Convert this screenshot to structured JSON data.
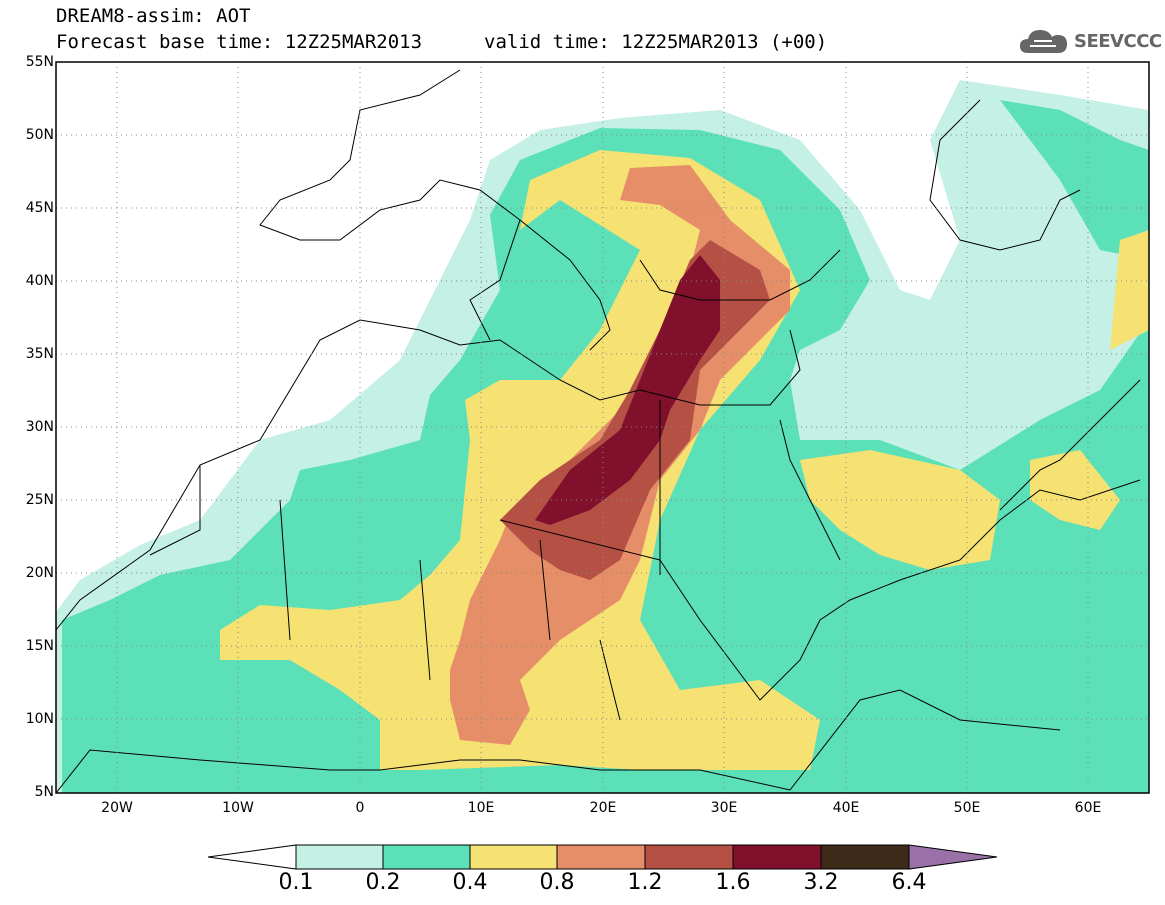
{
  "header": {
    "title": "DREAM8-assim: AOT",
    "base_time": "Forecast base time: 12Z25MAR2013",
    "valid_time": "valid time: 12Z25MAR2013 (+00)"
  },
  "logo": {
    "text": "SEEVCCC",
    "icon": "cloud-icon"
  },
  "map": {
    "lat_labels": [
      "55N",
      "50N",
      "45N",
      "40N",
      "35N",
      "30N",
      "25N",
      "20N",
      "15N",
      "10N",
      "5N"
    ],
    "lon_labels": [
      "20W",
      "10W",
      "0",
      "10E",
      "20E",
      "30E",
      "40E",
      "50E",
      "60E"
    ],
    "lon_range": [
      -25,
      65
    ],
    "lat_range": [
      5,
      55
    ],
    "grid": "dotted"
  },
  "legend": {
    "thresholds": [
      "0.1",
      "0.2",
      "0.4",
      "0.8",
      "1.2",
      "1.6",
      "3.2",
      "6.4"
    ],
    "colors": [
      "#ffffff",
      "#c4f0e6",
      "#5ce0b8",
      "#f5e273",
      "#e58e68",
      "#b55045",
      "#80102b",
      "#3e2a18",
      "#9a70a8"
    ]
  }
}
